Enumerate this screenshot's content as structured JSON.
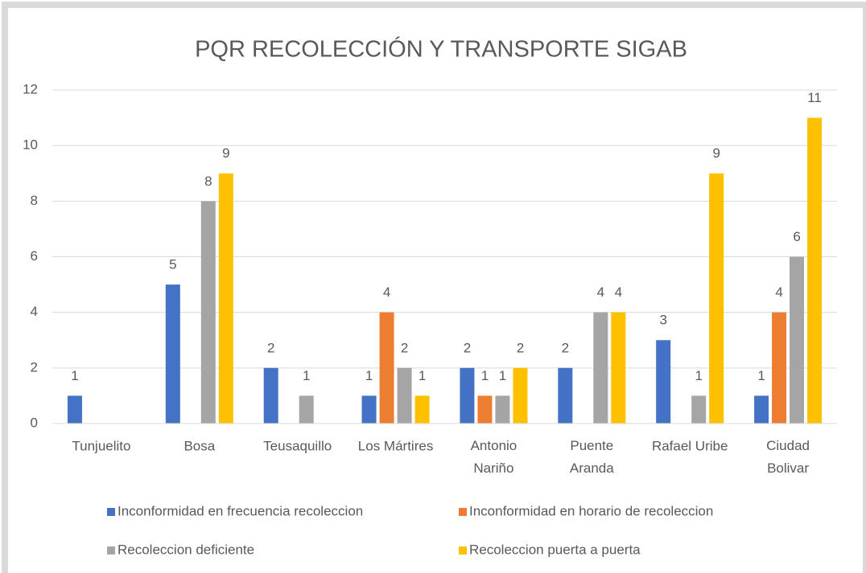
{
  "chart_data": {
    "type": "bar",
    "title": "PQR RECOLECCIÓN Y TRANSPORTE SIGAB",
    "categories": [
      "Tunjuelito",
      "Bosa",
      "Teusaquillo",
      "Los Mártires",
      "Antonio Nariño",
      "Puente Aranda",
      "Rafael Uribe",
      "Ciudad Bolivar"
    ],
    "series": [
      {
        "name": "Inconformidad en frecuencia recoleccion",
        "color": "#4472c4",
        "values": [
          1,
          5,
          2,
          1,
          2,
          2,
          3,
          1
        ]
      },
      {
        "name": "Inconformidad en horario de recoleccion",
        "color": "#ed7d31",
        "values": [
          null,
          null,
          null,
          4,
          1,
          null,
          null,
          4
        ]
      },
      {
        "name": "Recoleccion deficiente",
        "color": "#a5a5a5",
        "values": [
          null,
          8,
          1,
          2,
          1,
          4,
          1,
          6
        ]
      },
      {
        "name": "Recoleccion puerta a puerta",
        "color": "#ffc000",
        "values": [
          null,
          9,
          null,
          1,
          2,
          4,
          9,
          11
        ]
      }
    ],
    "ylim": [
      0,
      12
    ],
    "yticks": [
      0,
      2,
      4,
      6,
      8,
      10,
      12
    ],
    "grid": true,
    "legend": "bottom"
  }
}
